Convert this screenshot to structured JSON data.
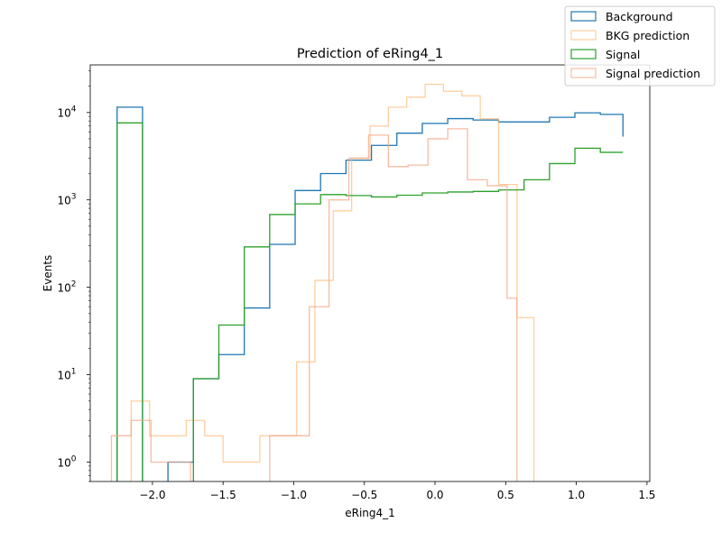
{
  "chart_data": {
    "type": "histogram",
    "title": "Prediction of eRing4_1",
    "xlabel": "eRing4_1",
    "ylabel": "Events",
    "xlim": [
      -2.44,
      1.52
    ],
    "ylim": [
      0.6,
      35000
    ],
    "yscale": "log",
    "grid": false,
    "legend_position": "top-right",
    "x_ticks": [
      {
        "value": -2.0,
        "label": "−2.0"
      },
      {
        "value": -1.5,
        "label": "−1.5"
      },
      {
        "value": -1.0,
        "label": "−1.0"
      },
      {
        "value": -0.5,
        "label": "−0.5"
      },
      {
        "value": 0.0,
        "label": "0.0"
      },
      {
        "value": 0.5,
        "label": "0.5"
      },
      {
        "value": 1.0,
        "label": "1.0"
      },
      {
        "value": 1.5,
        "label": "1.5"
      }
    ],
    "y_ticks": [
      {
        "value": 1,
        "base": "10",
        "exp": "0"
      },
      {
        "value": 10,
        "base": "10",
        "exp": "1"
      },
      {
        "value": 100,
        "base": "10",
        "exp": "2"
      },
      {
        "value": 1000,
        "base": "10",
        "exp": "3"
      },
      {
        "value": 10000,
        "base": "10",
        "exp": "4"
      }
    ],
    "series": [
      {
        "name": "Background",
        "color": "#1f77b4",
        "alpha": 1.0,
        "edges": [
          -2.25,
          -2.07,
          -1.89,
          -1.71,
          -1.53,
          -1.35,
          -1.17,
          -0.99,
          -0.81,
          -0.63,
          -0.45,
          -0.27,
          -0.09,
          0.09,
          0.27,
          0.45,
          0.63,
          0.81,
          0.99,
          1.17,
          1.33
        ],
        "counts": [
          11500,
          0,
          1,
          9,
          17,
          58,
          310,
          1280,
          2000,
          2850,
          4200,
          5800,
          7500,
          8500,
          8200,
          7800,
          7800,
          8800,
          9900,
          9500,
          5300
        ]
      },
      {
        "name": "BKG prediction",
        "color": "#ffbb78",
        "alpha": 0.7,
        "edges": [
          -2.28,
          -2.15,
          -2.02,
          -1.89,
          -1.76,
          -1.63,
          -1.5,
          -1.37,
          -1.24,
          -1.11,
          -0.98,
          -0.85,
          -0.72,
          -0.59,
          -0.46,
          -0.33,
          -0.2,
          -0.07,
          0.06,
          0.19,
          0.32,
          0.45,
          0.58,
          0.7
        ],
        "counts": [
          0,
          5,
          2,
          2,
          3,
          2,
          1,
          1,
          2,
          2,
          14,
          120,
          750,
          3000,
          7000,
          11500,
          15000,
          21000,
          17500,
          15500,
          8500,
          1500,
          45
        ]
      },
      {
        "name": "Signal",
        "color": "#2ca02c",
        "alpha": 1.0,
        "edges": [
          -2.25,
          -2.07,
          -1.89,
          -1.71,
          -1.53,
          -1.35,
          -1.17,
          -0.99,
          -0.81,
          -0.63,
          -0.45,
          -0.27,
          -0.09,
          0.09,
          0.27,
          0.45,
          0.63,
          0.81,
          0.99,
          1.17,
          1.33
        ],
        "counts": [
          7600,
          0,
          0,
          9,
          37,
          290,
          680,
          900,
          1150,
          1120,
          1080,
          1130,
          1200,
          1230,
          1250,
          1300,
          1700,
          2600,
          3900,
          3500,
          3500
        ]
      },
      {
        "name": "Signal prediction",
        "color": "#f4a582",
        "alpha": 0.75,
        "edges": [
          -2.29,
          -2.15,
          -2.01,
          -1.87,
          -1.73,
          -1.59,
          -1.45,
          -1.31,
          -1.17,
          -1.03,
          -0.89,
          -0.75,
          -0.61,
          -0.47,
          -0.33,
          -0.19,
          -0.05,
          0.09,
          0.23,
          0.37,
          0.51,
          0.58
        ],
        "counts": [
          2,
          3,
          1,
          1,
          0,
          0,
          0,
          0,
          2,
          2,
          60,
          1000,
          3000,
          5500,
          2400,
          2500,
          5000,
          6500,
          1700,
          1450,
          75
        ]
      }
    ]
  }
}
